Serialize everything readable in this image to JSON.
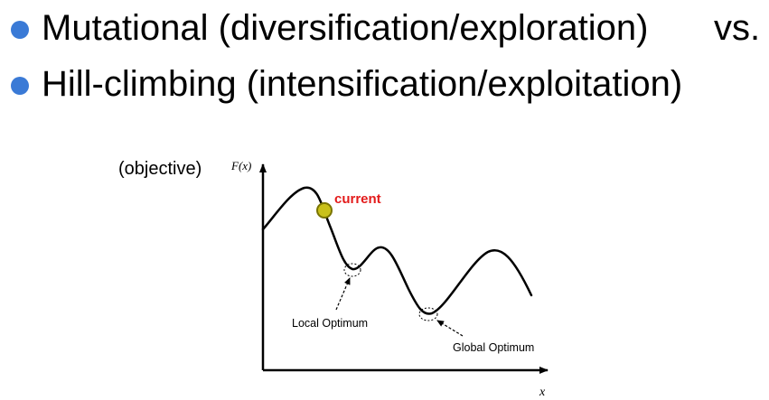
{
  "bullets": [
    {
      "text": "Mutational (diversification/exploration)"
    },
    {
      "text": "Hill-climbing (intensification/exploitation)"
    }
  ],
  "vs_text": "vs.",
  "colors": {
    "bullet": "#3a7ad6",
    "current_fill": "#c9c11a",
    "current_stroke": "#7a7400",
    "current_label": "#e31b1b"
  },
  "diagram": {
    "objective_label": "(objective)",
    "y_axis_label": "F(x)",
    "x_axis_label": "x",
    "current_label": "current",
    "local_optimum_label": "Local Optimum",
    "global_optimum_label": "Global Optimum"
  }
}
